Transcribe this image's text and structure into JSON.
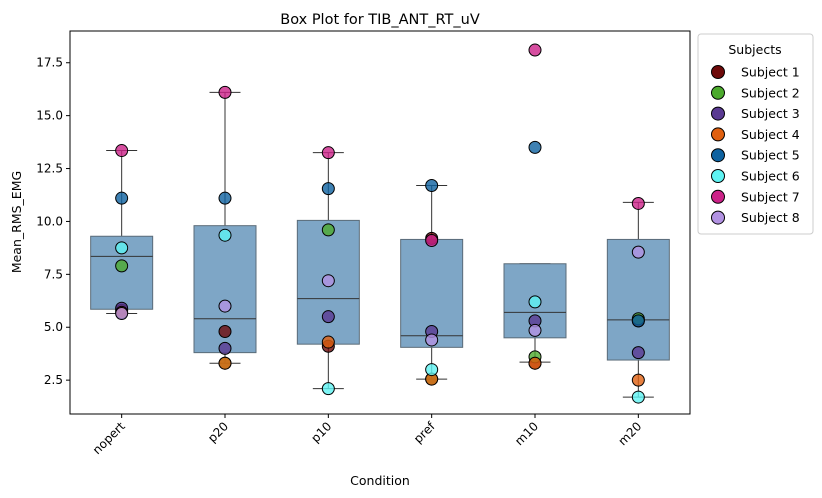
{
  "chart_data": {
    "type": "box",
    "title": "Box Plot for TIB_ANT_RT_uV",
    "xlabel": "Condition",
    "ylabel": "Mean_RMS_EMG",
    "ylim": [
      0.9,
      19.0
    ],
    "yticks": [
      2.5,
      5.0,
      7.5,
      10.0,
      12.5,
      15.0,
      17.5
    ],
    "ytick_labels": [
      "2.5",
      "5.0",
      "7.5",
      "10.0",
      "12.5",
      "15.0",
      "17.5"
    ],
    "categories": [
      "nopert",
      "p20",
      "p10",
      "pref",
      "m10",
      "m20"
    ],
    "box_color": "#7ea6c6",
    "legend": {
      "title": "Subjects",
      "placement": "outside-right-top"
    },
    "boxes": [
      {
        "category": "nopert",
        "whisker_low": 5.65,
        "q1": 5.85,
        "median": 8.35,
        "q3": 9.3,
        "whisker_high": 13.35
      },
      {
        "category": "p20",
        "whisker_low": 3.3,
        "q1": 3.8,
        "median": 5.4,
        "q3": 9.8,
        "whisker_high": 16.1
      },
      {
        "category": "p10",
        "whisker_low": 2.1,
        "q1": 4.2,
        "median": 6.35,
        "q3": 10.05,
        "whisker_high": 13.25
      },
      {
        "category": "pref",
        "whisker_low": 2.55,
        "q1": 4.05,
        "median": 4.6,
        "q3": 9.15,
        "whisker_high": 11.7
      },
      {
        "category": "m10",
        "whisker_low": 3.35,
        "q1": 4.5,
        "median": 5.7,
        "q3": 8.0,
        "whisker_high": 8.0
      },
      {
        "category": "m20",
        "whisker_low": 1.7,
        "q1": 3.45,
        "median": 5.35,
        "q3": 9.15,
        "whisker_high": 10.9
      }
    ],
    "series": [
      {
        "name": "Subject 1",
        "color": "#6e0a0a",
        "values": [
          5.8,
          4.8,
          4.1,
          9.2,
          3.3,
          5.3
        ]
      },
      {
        "name": "Subject 2",
        "color": "#4caa2d",
        "values": [
          7.9,
          3.3,
          9.6,
          2.55,
          3.6,
          5.4
        ]
      },
      {
        "name": "Subject 3",
        "color": "#5a3a92",
        "values": [
          5.9,
          4.0,
          5.5,
          4.8,
          5.3,
          3.8
        ]
      },
      {
        "name": "Subject 4",
        "color": "#e06010",
        "values": [
          5.7,
          3.3,
          4.3,
          2.55,
          3.3,
          2.5
        ]
      },
      {
        "name": "Subject 5",
        "color": "#0e62a0",
        "values": [
          11.1,
          11.1,
          11.55,
          11.7,
          13.5,
          5.3
        ]
      },
      {
        "name": "Subject 6",
        "color": "#5ef2f2",
        "values": [
          8.75,
          9.35,
          2.1,
          3.0,
          6.2,
          1.7
        ]
      },
      {
        "name": "Subject 7",
        "color": "#cc2288",
        "values": [
          13.35,
          16.1,
          13.25,
          9.1,
          18.1,
          10.85
        ]
      },
      {
        "name": "Subject 8",
        "color": "#b292e2",
        "values": [
          5.65,
          6.0,
          7.2,
          4.4,
          4.85,
          8.55
        ]
      }
    ]
  }
}
